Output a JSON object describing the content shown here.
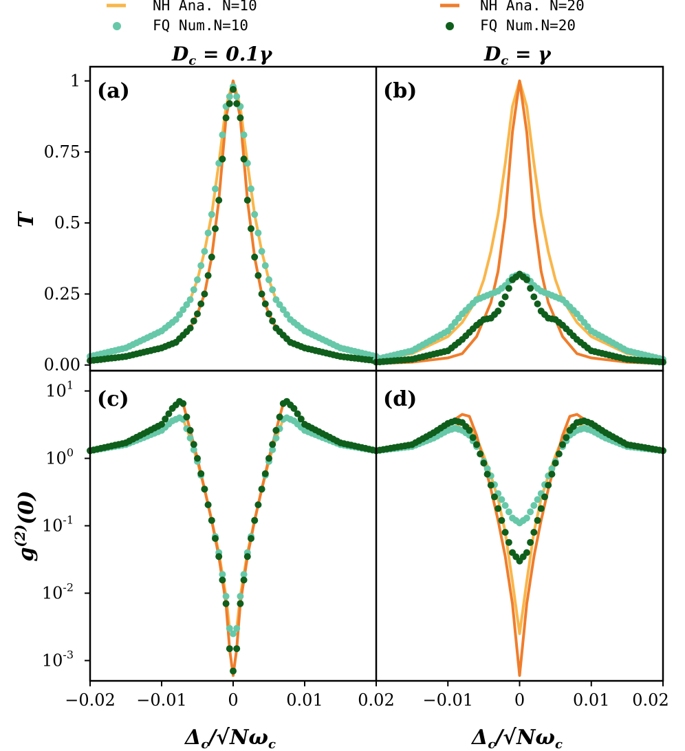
{
  "legend": {
    "items": [
      {
        "label": "NH Ana. N=10",
        "kind": "line",
        "color": "#f9b64a"
      },
      {
        "label": "FQ Num.N=10",
        "kind": "dot",
        "color": "#66c8a8"
      },
      {
        "label": "NH Ana. N=20",
        "kind": "line",
        "color": "#ef7d2c"
      },
      {
        "label": "FQ Num.N=20",
        "kind": "dot",
        "color": "#0f5e1c"
      }
    ]
  },
  "col_titles": [
    "D_c = 0.1γ",
    "D_c = γ"
  ],
  "colors": {
    "nh10": "#f9b64a",
    "nh20": "#ef7d2c",
    "fq10": "#66c8a8",
    "fq20": "#0f5e1c"
  },
  "chart_data": [
    {
      "panel": "(a)",
      "type": "line",
      "ylabel": "T",
      "xlabel": "Δc/√N ωc",
      "xlim": [
        -0.02,
        0.02
      ],
      "ylim": [
        -0.02,
        1.05
      ],
      "yticks": [
        0,
        0.25,
        0.5,
        0.75,
        1
      ],
      "ytick_labels": [
        "0.00",
        "0.25",
        "0.5",
        "0.75",
        "1"
      ],
      "series": [
        {
          "name": "NH Ana. N=10",
          "x": [
            -0.02,
            -0.015,
            -0.01,
            -0.008,
            -0.006,
            -0.005,
            -0.004,
            -0.003,
            -0.002,
            -0.001,
            0,
            0.001,
            0.002,
            0.003,
            0.004,
            0.005,
            0.006,
            0.008,
            0.01,
            0.015,
            0.02
          ],
          "values": [
            0.03,
            0.06,
            0.12,
            0.16,
            0.23,
            0.3,
            0.4,
            0.53,
            0.71,
            0.91,
            1.0,
            0.91,
            0.71,
            0.53,
            0.4,
            0.3,
            0.23,
            0.16,
            0.12,
            0.06,
            0.03
          ]
        },
        {
          "name": "NH Ana. N=20",
          "x": [
            -0.02,
            -0.015,
            -0.01,
            -0.008,
            -0.006,
            -0.005,
            -0.004,
            -0.003,
            -0.002,
            -0.001,
            0,
            0.001,
            0.002,
            0.003,
            0.004,
            0.005,
            0.006,
            0.008,
            0.01,
            0.015,
            0.02
          ],
          "values": [
            0.015,
            0.03,
            0.06,
            0.08,
            0.13,
            0.18,
            0.25,
            0.38,
            0.58,
            0.87,
            1.0,
            0.87,
            0.58,
            0.38,
            0.25,
            0.18,
            0.13,
            0.08,
            0.06,
            0.03,
            0.015
          ]
        },
        {
          "name": "FQ Num.N=10",
          "x": [
            -0.02,
            -0.015,
            -0.01,
            -0.008,
            -0.006,
            -0.005,
            -0.004,
            -0.003,
            -0.002,
            -0.001,
            0,
            0.001,
            0.002,
            0.003,
            0.004,
            0.005,
            0.006,
            0.008,
            0.01,
            0.015,
            0.02
          ],
          "values": [
            0.03,
            0.06,
            0.12,
            0.16,
            0.23,
            0.3,
            0.4,
            0.53,
            0.71,
            0.91,
            0.98,
            0.91,
            0.71,
            0.53,
            0.4,
            0.3,
            0.23,
            0.16,
            0.12,
            0.06,
            0.03
          ]
        },
        {
          "name": "FQ Num.N=20",
          "x": [
            -0.02,
            -0.015,
            -0.01,
            -0.008,
            -0.006,
            -0.005,
            -0.004,
            -0.003,
            -0.002,
            -0.001,
            0,
            0.001,
            0.002,
            0.003,
            0.004,
            0.005,
            0.006,
            0.008,
            0.01,
            0.015,
            0.02
          ],
          "values": [
            0.015,
            0.03,
            0.06,
            0.08,
            0.13,
            0.18,
            0.25,
            0.38,
            0.58,
            0.87,
            0.97,
            0.87,
            0.58,
            0.38,
            0.25,
            0.18,
            0.13,
            0.08,
            0.06,
            0.03,
            0.015
          ]
        }
      ]
    },
    {
      "panel": "(b)",
      "type": "line",
      "ylabel": "",
      "xlabel": "Δc/√N ωc",
      "xlim": [
        -0.02,
        0.02
      ],
      "ylim": [
        -0.02,
        1.05
      ],
      "series": [
        {
          "name": "NH Ana. N=10",
          "x": [
            -0.02,
            -0.015,
            -0.01,
            -0.008,
            -0.006,
            -0.005,
            -0.004,
            -0.003,
            -0.002,
            -0.001,
            0,
            0.001,
            0.002,
            0.003,
            0.004,
            0.005,
            0.006,
            0.008,
            0.01,
            0.015,
            0.02
          ],
          "values": [
            0.02,
            0.04,
            0.1,
            0.15,
            0.23,
            0.3,
            0.4,
            0.53,
            0.71,
            0.91,
            1.0,
            0.91,
            0.71,
            0.53,
            0.4,
            0.3,
            0.23,
            0.15,
            0.1,
            0.04,
            0.02
          ]
        },
        {
          "name": "NH Ana. N=20",
          "x": [
            -0.02,
            -0.015,
            -0.01,
            -0.008,
            -0.006,
            -0.005,
            -0.004,
            -0.003,
            -0.002,
            -0.001,
            0,
            0.001,
            0.002,
            0.003,
            0.004,
            0.005,
            0.006,
            0.008,
            0.01,
            0.015,
            0.02
          ],
          "values": [
            0.005,
            0.01,
            0.025,
            0.04,
            0.1,
            0.16,
            0.22,
            0.33,
            0.52,
            0.82,
            1.0,
            0.82,
            0.52,
            0.33,
            0.22,
            0.16,
            0.1,
            0.04,
            0.025,
            0.01,
            0.005
          ]
        },
        {
          "name": "FQ Num.N=10",
          "x": [
            -0.02,
            -0.015,
            -0.01,
            -0.008,
            -0.006,
            -0.005,
            -0.004,
            -0.003,
            -0.002,
            -0.001,
            0,
            0.001,
            0.002,
            0.003,
            0.004,
            0.005,
            0.006,
            0.008,
            0.01,
            0.015,
            0.02
          ],
          "values": [
            0.02,
            0.05,
            0.12,
            0.18,
            0.23,
            0.24,
            0.25,
            0.26,
            0.28,
            0.31,
            0.32,
            0.31,
            0.28,
            0.26,
            0.25,
            0.24,
            0.23,
            0.18,
            0.12,
            0.05,
            0.02
          ]
        },
        {
          "name": "FQ Num.N=20",
          "x": [
            -0.02,
            -0.015,
            -0.01,
            -0.008,
            -0.006,
            -0.005,
            -0.004,
            -0.003,
            -0.002,
            -0.001,
            0,
            0.001,
            0.002,
            0.003,
            0.004,
            0.005,
            0.006,
            0.008,
            0.01,
            0.015,
            0.02
          ],
          "values": [
            0.01,
            0.02,
            0.05,
            0.09,
            0.14,
            0.16,
            0.165,
            0.19,
            0.24,
            0.3,
            0.32,
            0.3,
            0.24,
            0.19,
            0.165,
            0.16,
            0.14,
            0.09,
            0.05,
            0.02,
            0.01
          ]
        }
      ]
    },
    {
      "panel": "(c)",
      "type": "line",
      "ylabel": "g(2)(0)",
      "xlabel": "Δc/√N ωc",
      "xlim": [
        -0.02,
        0.02
      ],
      "yscale": "log",
      "ylim": [
        0.0005,
        20
      ],
      "yticks": [
        0.001,
        0.01,
        0.1,
        1,
        10
      ],
      "ytick_exponents": [
        "-3",
        "-2",
        "-1",
        "0",
        "1"
      ],
      "xticks": [
        -0.02,
        -0.01,
        0,
        0.01,
        0.02
      ],
      "xtick_labels": [
        "−0.02",
        "−0.01",
        "0",
        "0.01",
        "0.02"
      ],
      "series": [
        {
          "name": "NH Ana. N=10",
          "x": [
            -0.02,
            -0.015,
            -0.01,
            -0.0085,
            -0.0075,
            -0.007,
            -0.006,
            -0.005,
            -0.004,
            -0.003,
            -0.002,
            -0.001,
            -0.0005,
            0,
            0.0005,
            0.001,
            0.002,
            0.003,
            0.004,
            0.005,
            0.006,
            0.007,
            0.0075,
            0.0085,
            0.01,
            0.015,
            0.02
          ],
          "values": [
            1.3,
            1.6,
            2.6,
            3.6,
            4.0,
            3.8,
            2.0,
            0.9,
            0.35,
            0.12,
            0.04,
            0.009,
            0.003,
            0.0025,
            0.003,
            0.009,
            0.04,
            0.12,
            0.35,
            0.9,
            2.0,
            3.8,
            4.0,
            3.6,
            2.6,
            1.6,
            1.3
          ]
        },
        {
          "name": "NH Ana. N=20",
          "x": [
            -0.02,
            -0.015,
            -0.01,
            -0.0085,
            -0.0075,
            -0.007,
            -0.006,
            -0.005,
            -0.004,
            -0.003,
            -0.002,
            -0.001,
            -0.0005,
            0,
            0.0005,
            0.001,
            0.002,
            0.003,
            0.004,
            0.005,
            0.006,
            0.007,
            0.0075,
            0.0085,
            0.01,
            0.015,
            0.02
          ],
          "values": [
            1.3,
            1.7,
            3.2,
            5.5,
            7.0,
            6.5,
            2.6,
            1.0,
            0.35,
            0.12,
            0.035,
            0.007,
            0.0015,
            0.0006,
            0.0015,
            0.007,
            0.035,
            0.12,
            0.35,
            1.0,
            2.6,
            6.5,
            7.0,
            5.5,
            3.2,
            1.7,
            1.3
          ]
        },
        {
          "name": "FQ Num.N=10",
          "x": [
            -0.02,
            -0.015,
            -0.01,
            -0.0085,
            -0.0075,
            -0.007,
            -0.006,
            -0.005,
            -0.004,
            -0.003,
            -0.002,
            -0.001,
            -0.0005,
            0,
            0.0005,
            0.001,
            0.002,
            0.003,
            0.004,
            0.005,
            0.006,
            0.007,
            0.0075,
            0.0085,
            0.01,
            0.015,
            0.02
          ],
          "values": [
            1.3,
            1.6,
            2.6,
            3.6,
            4.0,
            3.8,
            2.0,
            0.9,
            0.35,
            0.12,
            0.04,
            0.009,
            0.003,
            0.0025,
            0.003,
            0.009,
            0.04,
            0.12,
            0.35,
            0.9,
            2.0,
            3.8,
            4.0,
            3.6,
            2.6,
            1.6,
            1.3
          ]
        },
        {
          "name": "FQ Num.N=20",
          "x": [
            -0.02,
            -0.015,
            -0.01,
            -0.0085,
            -0.0075,
            -0.007,
            -0.006,
            -0.005,
            -0.004,
            -0.003,
            -0.002,
            -0.001,
            -0.0005,
            0,
            0.0005,
            0.001,
            0.002,
            0.003,
            0.004,
            0.005,
            0.006,
            0.007,
            0.0075,
            0.0085,
            0.01,
            0.015,
            0.02
          ],
          "values": [
            1.3,
            1.7,
            3.2,
            5.5,
            7.0,
            6.5,
            2.6,
            1.0,
            0.35,
            0.12,
            0.035,
            0.007,
            0.0015,
            0.0007,
            0.0015,
            0.007,
            0.035,
            0.12,
            0.35,
            1.0,
            2.6,
            6.5,
            7.0,
            5.5,
            3.2,
            1.7,
            1.3
          ]
        }
      ]
    },
    {
      "panel": "(d)",
      "type": "line",
      "ylabel": "",
      "xlabel": "Δc/√N ωc",
      "xlim": [
        -0.02,
        0.02
      ],
      "yscale": "log",
      "ylim": [
        0.0005,
        20
      ],
      "series": [
        {
          "name": "NH Ana. N=10",
          "x": [
            -0.02,
            -0.015,
            -0.012,
            -0.01,
            -0.009,
            -0.008,
            -0.007,
            -0.006,
            -0.005,
            -0.004,
            -0.003,
            -0.002,
            -0.001,
            0,
            0.001,
            0.002,
            0.003,
            0.004,
            0.005,
            0.006,
            0.007,
            0.008,
            0.009,
            0.01,
            0.012,
            0.015,
            0.02
          ],
          "values": [
            1.3,
            1.5,
            2.0,
            2.6,
            3.0,
            3.2,
            3.0,
            2.0,
            1.1,
            0.55,
            0.25,
            0.08,
            0.015,
            0.0025,
            0.015,
            0.08,
            0.25,
            0.55,
            1.1,
            2.0,
            3.0,
            3.2,
            3.0,
            2.6,
            2.0,
            1.5,
            1.3
          ]
        },
        {
          "name": "NH Ana. N=20",
          "x": [
            -0.02,
            -0.015,
            -0.012,
            -0.01,
            -0.009,
            -0.008,
            -0.007,
            -0.006,
            -0.005,
            -0.004,
            -0.003,
            -0.002,
            -0.001,
            0,
            0.001,
            0.002,
            0.003,
            0.004,
            0.005,
            0.006,
            0.007,
            0.008,
            0.009,
            0.01,
            0.012,
            0.015,
            0.02
          ],
          "values": [
            1.3,
            1.6,
            2.3,
            3.0,
            3.8,
            4.5,
            4.2,
            2.2,
            0.9,
            0.35,
            0.12,
            0.035,
            0.007,
            0.0006,
            0.007,
            0.035,
            0.12,
            0.35,
            0.9,
            2.2,
            4.2,
            4.5,
            3.8,
            3.0,
            2.3,
            1.6,
            1.3
          ]
        },
        {
          "name": "FQ Num.N=10",
          "x": [
            -0.02,
            -0.015,
            -0.012,
            -0.01,
            -0.009,
            -0.008,
            -0.007,
            -0.006,
            -0.005,
            -0.004,
            -0.003,
            -0.002,
            -0.001,
            0,
            0.001,
            0.002,
            0.003,
            0.004,
            0.005,
            0.006,
            0.007,
            0.008,
            0.009,
            0.01,
            0.012,
            0.015,
            0.02
          ],
          "values": [
            1.3,
            1.5,
            2.0,
            2.6,
            2.8,
            2.6,
            2.2,
            1.5,
            0.9,
            0.55,
            0.3,
            0.2,
            0.13,
            0.11,
            0.13,
            0.2,
            0.3,
            0.55,
            0.9,
            1.5,
            2.2,
            2.6,
            2.8,
            2.6,
            2.0,
            1.5,
            1.3
          ]
        },
        {
          "name": "FQ Num.N=20",
          "x": [
            -0.02,
            -0.015,
            -0.012,
            -0.01,
            -0.009,
            -0.008,
            -0.007,
            -0.006,
            -0.005,
            -0.004,
            -0.003,
            -0.002,
            -0.001,
            0,
            0.001,
            0.002,
            0.003,
            0.004,
            0.005,
            0.006,
            0.007,
            0.008,
            0.009,
            0.01,
            0.012,
            0.015,
            0.02
          ],
          "values": [
            1.3,
            1.6,
            2.4,
            3.3,
            3.6,
            3.4,
            2.6,
            1.6,
            0.85,
            0.4,
            0.18,
            0.08,
            0.04,
            0.03,
            0.04,
            0.08,
            0.18,
            0.4,
            0.85,
            1.6,
            2.6,
            3.4,
            3.6,
            3.3,
            2.4,
            1.6,
            1.3
          ]
        }
      ]
    }
  ],
  "x_tick_labels_right": [
    "−0.01",
    "0",
    "0.01",
    "0.02"
  ]
}
